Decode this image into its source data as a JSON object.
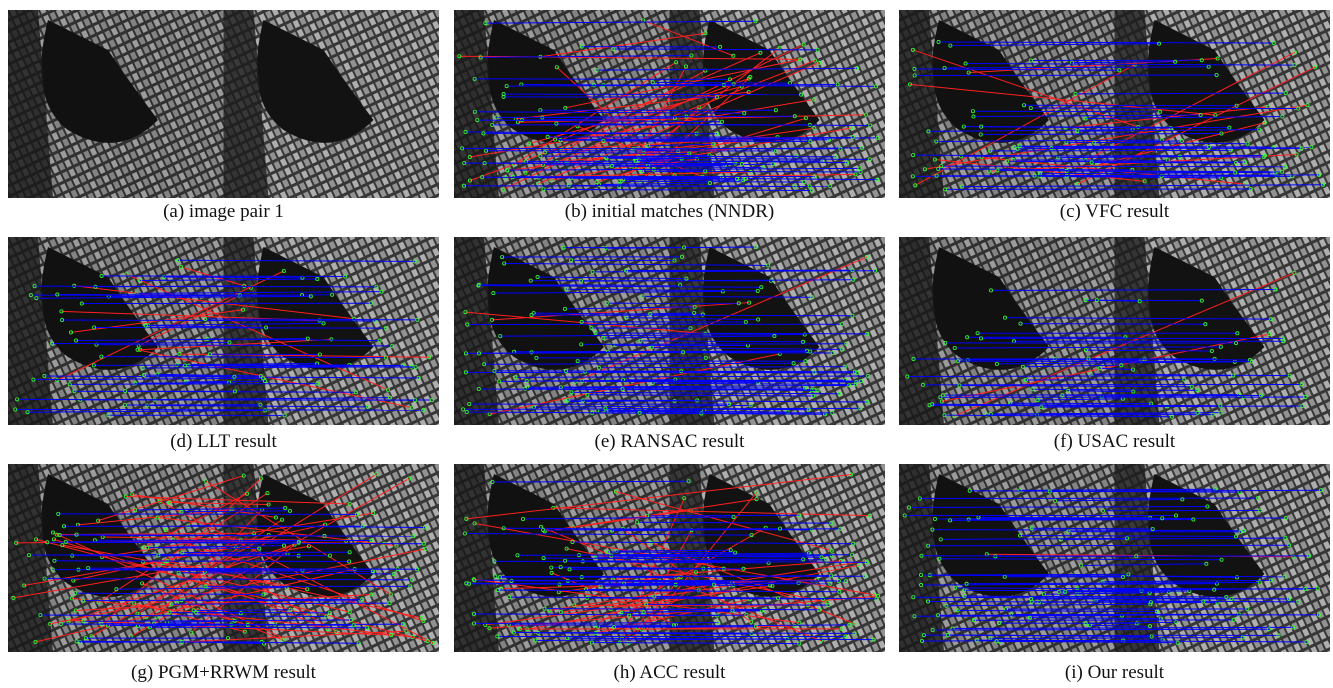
{
  "panels": [
    {
      "caption": "(a) image pair 1"
    },
    {
      "caption": "(b) initial matches (NNDR)"
    },
    {
      "caption": "(c) VFC result"
    },
    {
      "caption": "(d) LLT result"
    },
    {
      "caption": "(e) RANSAC result"
    },
    {
      "caption": "(f) USAC result"
    },
    {
      "caption": "(g) PGM+RRWM result"
    },
    {
      "caption": "(h) ACC result"
    },
    {
      "caption": "(i) Our result"
    }
  ]
}
